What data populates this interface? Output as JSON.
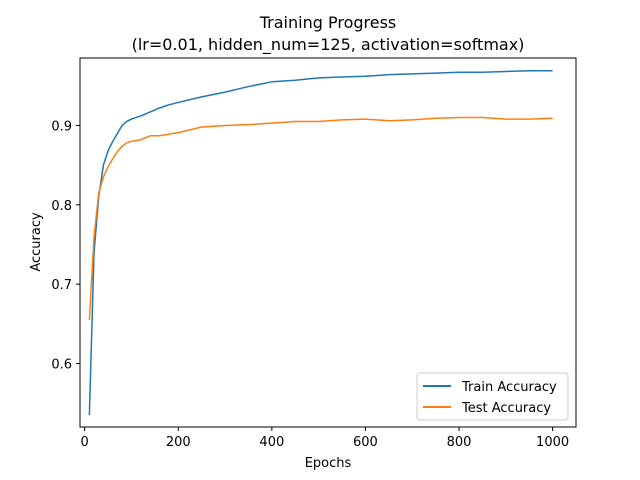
{
  "chart_data": {
    "type": "line",
    "title_line1": "Training Progress",
    "title_line2": "(lr=0.01, hidden_num=125, activation=softmax)",
    "xlabel": "Epochs",
    "ylabel": "Accuracy",
    "xlim": [
      -10,
      1050
    ],
    "ylim": [
      0.52,
      0.985
    ],
    "x_ticks": [
      0,
      200,
      400,
      600,
      800,
      1000
    ],
    "y_ticks": [
      0.6,
      0.7,
      0.8,
      0.9
    ],
    "x_tick_labels": [
      "0",
      "200",
      "400",
      "600",
      "800",
      "1000"
    ],
    "y_tick_labels": [
      "0.6",
      "0.7",
      "0.8",
      "0.9"
    ],
    "grid": false,
    "legend_position": "lower-right",
    "series": [
      {
        "name": "Train Accuracy",
        "color": "#1f77b4",
        "x": [
          10,
          20,
          30,
          40,
          50,
          60,
          70,
          80,
          90,
          100,
          120,
          140,
          160,
          180,
          200,
          250,
          300,
          350,
          400,
          450,
          500,
          550,
          600,
          650,
          700,
          750,
          800,
          850,
          900,
          950,
          1000
        ],
        "y": [
          0.535,
          0.74,
          0.81,
          0.85,
          0.868,
          0.88,
          0.89,
          0.9,
          0.905,
          0.908,
          0.912,
          0.917,
          0.922,
          0.926,
          0.929,
          0.936,
          0.942,
          0.949,
          0.955,
          0.957,
          0.96,
          0.961,
          0.962,
          0.964,
          0.965,
          0.966,
          0.967,
          0.967,
          0.968,
          0.969,
          0.969
        ]
      },
      {
        "name": "Test Accuracy",
        "color": "#ff7f0e",
        "x": [
          10,
          20,
          30,
          40,
          50,
          60,
          70,
          80,
          90,
          100,
          120,
          140,
          160,
          180,
          200,
          250,
          300,
          350,
          400,
          450,
          500,
          550,
          600,
          650,
          700,
          750,
          800,
          850,
          900,
          950,
          1000
        ],
        "y": [
          0.655,
          0.76,
          0.815,
          0.835,
          0.848,
          0.858,
          0.867,
          0.874,
          0.878,
          0.88,
          0.882,
          0.887,
          0.887,
          0.889,
          0.891,
          0.898,
          0.9,
          0.901,
          0.903,
          0.905,
          0.905,
          0.907,
          0.908,
          0.906,
          0.907,
          0.909,
          0.91,
          0.91,
          0.908,
          0.908,
          0.909
        ]
      }
    ]
  }
}
